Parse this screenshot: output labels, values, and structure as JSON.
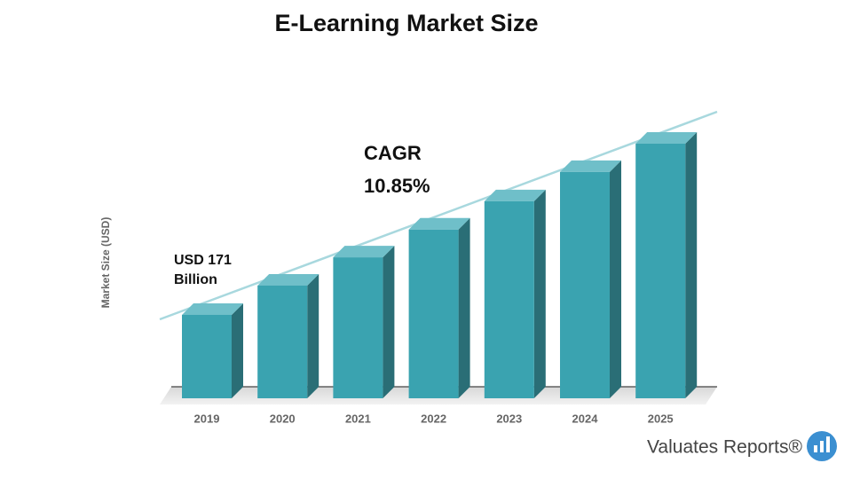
{
  "chart_data": {
    "type": "bar3d",
    "title": "E-Learning Market Size",
    "y_label": "Market Size (USD)",
    "categories": [
      "2019",
      "2020",
      "2021",
      "2022",
      "2023",
      "2024",
      "2025"
    ],
    "values": [
      171,
      231,
      289,
      346,
      404,
      464,
      522
    ],
    "value_labels": [
      "USD 171 Billion",
      null,
      null,
      null,
      null,
      null,
      null
    ],
    "color": "#3aa3b0",
    "annotations": {
      "cagr_label": "CAGR",
      "cagr_value": "10.85%"
    },
    "logo": "Valuates Reports®"
  }
}
